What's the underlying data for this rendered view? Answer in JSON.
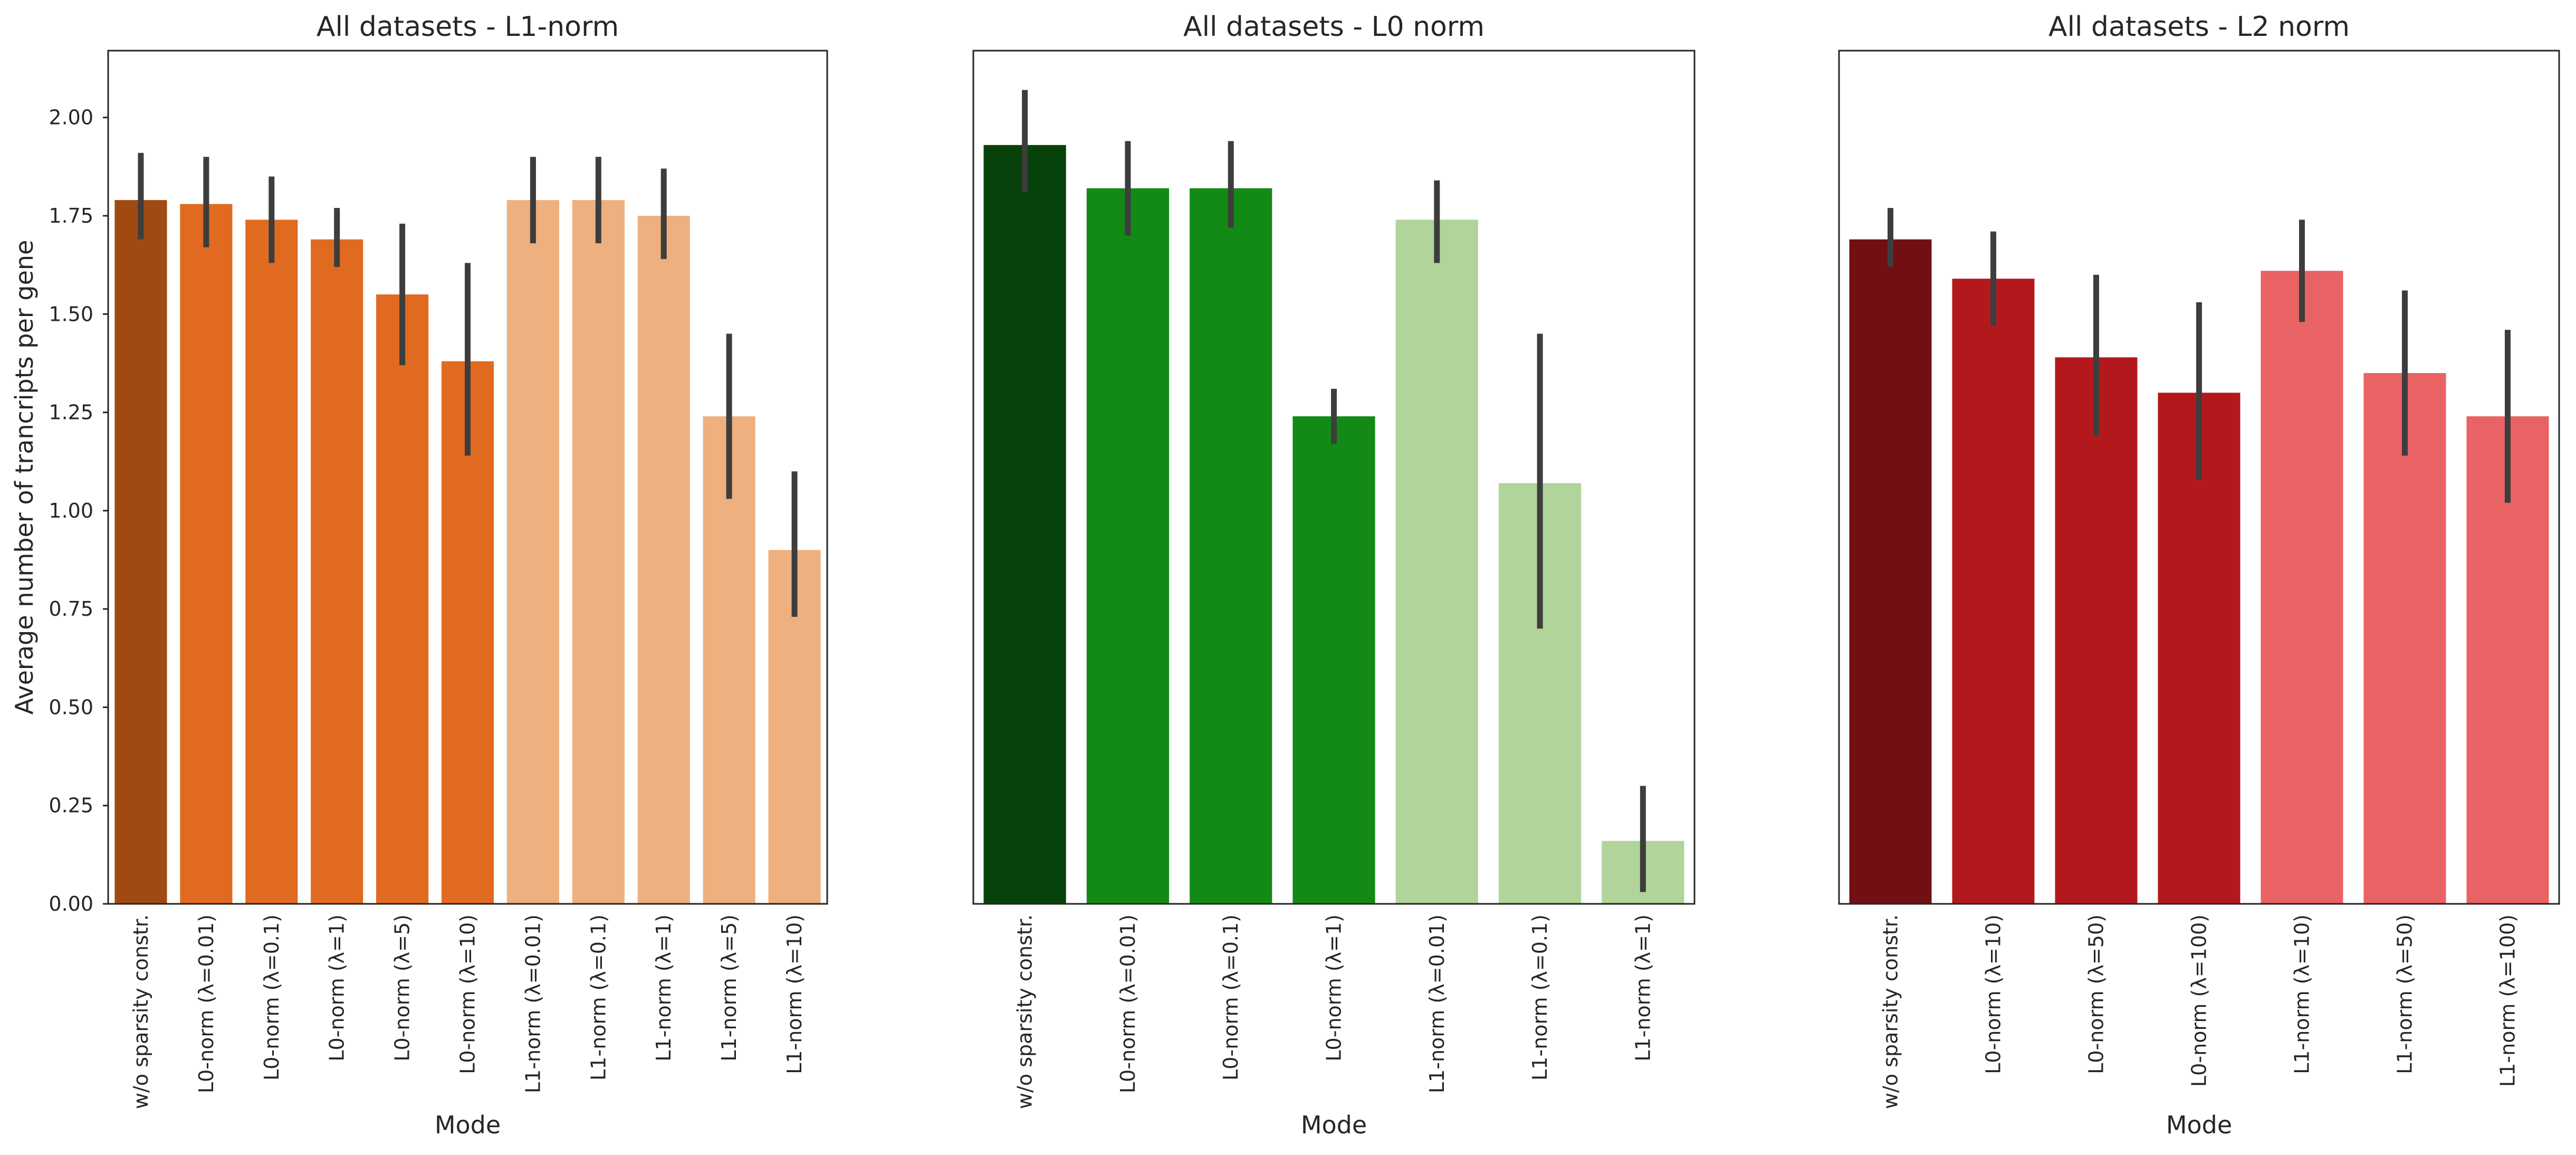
{
  "chart_data": [
    {
      "type": "bar",
      "title": "All datasets - L1-norm",
      "xlabel": "Mode",
      "ylabel": "Average number of trancripts per gene",
      "ylim": [
        0,
        2.17
      ],
      "yticks": [
        "0.00",
        "0.25",
        "0.50",
        "0.75",
        "1.00",
        "1.25",
        "1.50",
        "1.75",
        "2.00"
      ],
      "grid": false,
      "categories": [
        "w/o sparsity constr.",
        "L0-norm (λ=0.01)",
        "L0-norm (λ=0.1)",
        "L0-norm (λ=1)",
        "L0-norm (λ=5)",
        "L0-norm (λ=10)",
        "L1-norm (λ=0.01)",
        "L1-norm (λ=0.1)",
        "L1-norm (λ=1)",
        "L1-norm (λ=5)",
        "L1-norm (λ=10)"
      ],
      "values": [
        1.79,
        1.78,
        1.74,
        1.69,
        1.55,
        1.38,
        1.79,
        1.79,
        1.75,
        1.24,
        0.9
      ],
      "ci_low": [
        1.69,
        1.67,
        1.63,
        1.62,
        1.37,
        1.14,
        1.68,
        1.68,
        1.64,
        1.03,
        0.73
      ],
      "ci_high": [
        1.91,
        1.9,
        1.85,
        1.77,
        1.73,
        1.63,
        1.9,
        1.9,
        1.87,
        1.45,
        1.1
      ],
      "colors": [
        "#9e4a12",
        "#e06b20",
        "#e06b20",
        "#e06b20",
        "#e06b20",
        "#e06b20",
        "#eeb07e",
        "#eeb07e",
        "#eeb07e",
        "#eeb07e",
        "#eeb07e"
      ]
    },
    {
      "type": "bar",
      "title": "All datasets - L0 norm",
      "xlabel": "Mode",
      "ylabel": "",
      "ylim": [
        0,
        2.17
      ],
      "yticks": [],
      "grid": false,
      "categories": [
        "w/o sparsity constr.",
        "L0-norm (λ=0.01)",
        "L0-norm (λ=0.1)",
        "L0-norm (λ=1)",
        "L1-norm (λ=0.01)",
        "L1-norm (λ=0.1)",
        "L1-norm (λ=1)"
      ],
      "values": [
        1.93,
        1.82,
        1.82,
        1.24,
        1.74,
        1.07,
        0.16
      ],
      "ci_low": [
        1.81,
        1.7,
        1.72,
        1.17,
        1.63,
        0.7,
        0.03
      ],
      "ci_high": [
        2.07,
        1.94,
        1.94,
        1.31,
        1.84,
        1.45,
        0.3
      ],
      "colors": [
        "#07420a",
        "#138a16",
        "#138a16",
        "#138a16",
        "#b0d499",
        "#b0d499",
        "#b0d499"
      ]
    },
    {
      "type": "bar",
      "title": "All datasets - L2 norm",
      "xlabel": "Mode",
      "ylabel": "",
      "ylim": [
        0,
        2.17
      ],
      "yticks": [],
      "grid": false,
      "categories": [
        "w/o sparsity constr.",
        "L0-norm (λ=10)",
        "L0-norm (λ=50)",
        "L0-norm (λ=100)",
        "L1-norm (λ=10)",
        "L1-norm (λ=50)",
        "L1-norm (λ=100)"
      ],
      "values": [
        1.69,
        1.59,
        1.39,
        1.3,
        1.61,
        1.35,
        1.24
      ],
      "ci_low": [
        1.62,
        1.47,
        1.19,
        1.08,
        1.48,
        1.14,
        1.02
      ],
      "ci_high": [
        1.77,
        1.71,
        1.6,
        1.53,
        1.74,
        1.56,
        1.46
      ],
      "colors": [
        "#720f12",
        "#b3191c",
        "#b3191c",
        "#b3191c",
        "#e96264",
        "#e96264",
        "#e96264"
      ]
    }
  ]
}
